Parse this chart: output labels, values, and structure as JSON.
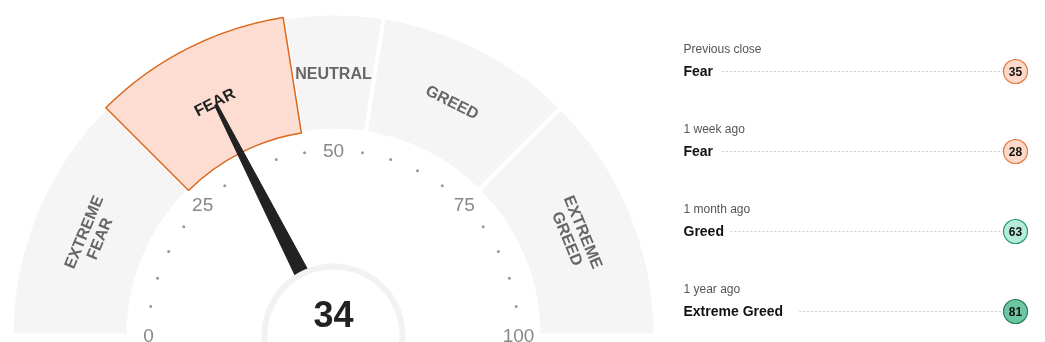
{
  "chart_data": [
    {
      "type": "donut",
      "categories": [
        "EXTREME FEAR",
        "FEAR",
        "NEUTRAL",
        "GREED",
        "EXTREME GREED"
      ],
      "values": [
        25,
        20,
        10,
        20,
        25
      ],
      "colors": [
        "#f5f5f5",
        "#fddcd2",
        "#f5f5f5",
        "#f5f5f5",
        "#f5f5f5"
      ],
      "needle": "FEAR",
      "annotations": [
        "34",
        "0",
        "25",
        "50",
        "75",
        "100"
      ]
    },
    {
      "type": "other",
      "annotations": [
        "Previous close",
        "Fear",
        "35",
        "1 week ago",
        "Fear",
        "28",
        "1 month ago",
        "Greed",
        "63",
        "1 year ago",
        "Extreme Greed",
        "81"
      ]
    }
  ]
}
